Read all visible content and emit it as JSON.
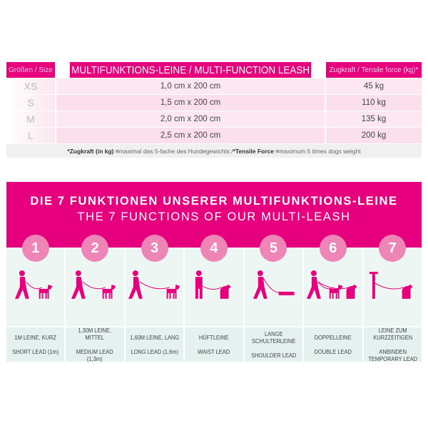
{
  "table": {
    "headers": [
      "Größen / Size",
      "MULTIFUNKTIONS-LEINE / MULTI-FUNCTION LEASH",
      "Zugkraft / Tensile force (kg)*"
    ],
    "rows": [
      {
        "size": "XS",
        "dimension": "1,0 cm x 200 cm",
        "force": "45 kg"
      },
      {
        "size": "S",
        "dimension": "1,5 cm x 200 cm",
        "force": "110 kg"
      },
      {
        "size": "M",
        "dimension": "2,0 cm x 200 cm",
        "force": "135 kg"
      },
      {
        "size": "L",
        "dimension": "2,5 cm x 200 cm",
        "force": "200 kg"
      }
    ],
    "footnote": {
      "de_label": "*Zugkraft (in kg) =",
      "de_text": " maximal das 5-fache des Hundegewichts / ",
      "en_label": "*Tensile Force =",
      "en_text": " maximum 5 times dogs weight"
    }
  },
  "banner": {
    "title_de": "DIE 7 FUNKTIONEN UNSERER MULTIFUNKTIONS-LEINE",
    "title_en": "THE 7 FUNCTIONS OF OUR MULTI-LEASH"
  },
  "colors": {
    "magenta": "#e6007e",
    "circle": "#ee85b7",
    "panel": "#eef6f4"
  },
  "functions": [
    {
      "num": "1",
      "de": "1M LEINE, KURZ",
      "en": "SHORT LEAD (1m)",
      "icon": "person-walking-dog-icon"
    },
    {
      "num": "2",
      "de": "1,30M LEINE, MITTEL",
      "en": "MEDIUM LEAD (1,3m)",
      "icon": "person-walking-dog-icon"
    },
    {
      "num": "3",
      "de": "1,60M LEINE, LANG",
      "en": "LONG LEAD (1,6m)",
      "icon": "person-walking-dog-icon"
    },
    {
      "num": "4",
      "de": "HÜFTLEINE",
      "en": "WAIST LEAD",
      "icon": "person-waist-dog-icon"
    },
    {
      "num": "5",
      "de": "LANGE SCHULTERLEINE",
      "en": "SHOULDER LEAD",
      "icon": "person-running-dog-icon"
    },
    {
      "num": "6",
      "de": "DOPPELLEINE",
      "en": "DOUBLE LEAD",
      "icon": "person-two-dogs-icon"
    },
    {
      "num": "7",
      "de": "LEINE ZUM KURZZEITIGEN",
      "en": "ANBINDEN TEMPORARY LEAD",
      "icon": "post-tied-dog-icon"
    }
  ]
}
